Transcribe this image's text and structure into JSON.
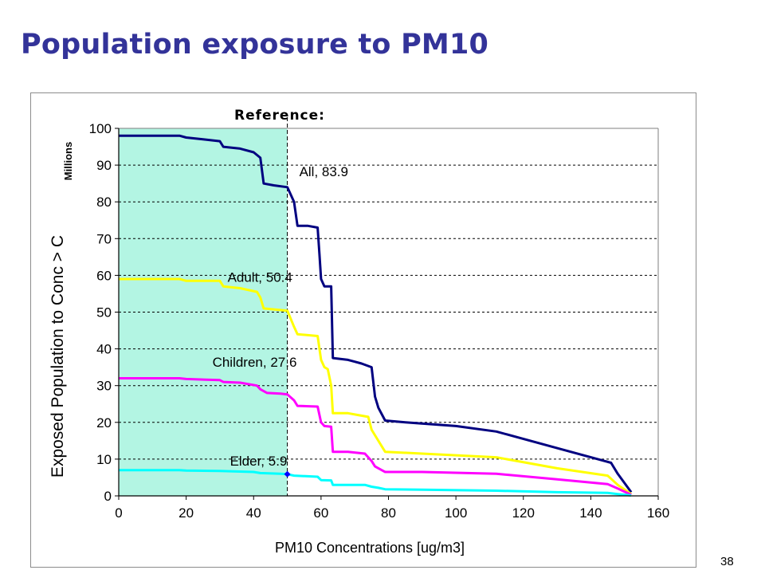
{
  "slide": {
    "title": "Population exposure to PM10",
    "page_number": "38"
  },
  "colors": {
    "title": "#333399",
    "reference_band": "#b3f5e3",
    "All": "#000080",
    "Adult": "#ffff00",
    "Children": "#ff00ff",
    "Elder": "#00ffff",
    "marker": "#0000ff"
  },
  "chart_data": {
    "type": "line",
    "title": "Reference:",
    "xlabel": "PM10 Concentrations [ug/m3]",
    "ylabel": "Exposed Population to Conc > C",
    "yunits": "Millions",
    "xlim": [
      0,
      160
    ],
    "ylim": [
      0,
      100
    ],
    "xticks": [
      0,
      20,
      40,
      60,
      80,
      100,
      120,
      140,
      160
    ],
    "yticks": [
      0,
      10,
      20,
      30,
      40,
      50,
      60,
      70,
      80,
      90,
      100
    ],
    "grid": "horizontal dashed",
    "reference": {
      "x": 50,
      "shaded_from": 0
    },
    "series": [
      {
        "name": "All",
        "color_key": "All",
        "points": [
          [
            0,
            98
          ],
          [
            18,
            98
          ],
          [
            20,
            97.5
          ],
          [
            25,
            97
          ],
          [
            30,
            96.5
          ],
          [
            31,
            95
          ],
          [
            36,
            94.5
          ],
          [
            40,
            93.5
          ],
          [
            42,
            92
          ],
          [
            43,
            85
          ],
          [
            46,
            84.5
          ],
          [
            50,
            84
          ],
          [
            52,
            80
          ],
          [
            53,
            73.5
          ],
          [
            56,
            73.5
          ],
          [
            59,
            73
          ],
          [
            59.5,
            66
          ],
          [
            60,
            59
          ],
          [
            61,
            57
          ],
          [
            63,
            57
          ],
          [
            63.5,
            37.5
          ],
          [
            68,
            37
          ],
          [
            70,
            36.5
          ],
          [
            72,
            36
          ],
          [
            75,
            35
          ],
          [
            76,
            27
          ],
          [
            77,
            24
          ],
          [
            79,
            20.5
          ],
          [
            85,
            20
          ],
          [
            100,
            19
          ],
          [
            112,
            17.5
          ],
          [
            130,
            13
          ],
          [
            146,
            9
          ],
          [
            148,
            6
          ],
          [
            152,
            1
          ]
        ]
      },
      {
        "name": "Adult",
        "color_key": "Adult",
        "points": [
          [
            0,
            59
          ],
          [
            18,
            59
          ],
          [
            20,
            58.5
          ],
          [
            30,
            58.5
          ],
          [
            31,
            57
          ],
          [
            36,
            56.5
          ],
          [
            41,
            55.5
          ],
          [
            42,
            54
          ],
          [
            43,
            51
          ],
          [
            50,
            50.4
          ],
          [
            52,
            46
          ],
          [
            53,
            44
          ],
          [
            59,
            43.5
          ],
          [
            60,
            37
          ],
          [
            61,
            35
          ],
          [
            62,
            34.5
          ],
          [
            63,
            30
          ],
          [
            63.5,
            22.5
          ],
          [
            68,
            22.5
          ],
          [
            71,
            22
          ],
          [
            74,
            21.5
          ],
          [
            75,
            18
          ],
          [
            77,
            15
          ],
          [
            79,
            12
          ],
          [
            90,
            11.5
          ],
          [
            112,
            10.5
          ],
          [
            130,
            7.5
          ],
          [
            145,
            5.5
          ],
          [
            148,
            3
          ],
          [
            152,
            0.5
          ]
        ]
      },
      {
        "name": "Children",
        "color_key": "Children",
        "points": [
          [
            0,
            32
          ],
          [
            18,
            32
          ],
          [
            20,
            31.8
          ],
          [
            30,
            31.5
          ],
          [
            31,
            31
          ],
          [
            36,
            30.8
          ],
          [
            41,
            30
          ],
          [
            42,
            29
          ],
          [
            44,
            28
          ],
          [
            48,
            27.8
          ],
          [
            50,
            27.6
          ],
          [
            52,
            26
          ],
          [
            53,
            24.5
          ],
          [
            59,
            24.3
          ],
          [
            60,
            20
          ],
          [
            61,
            19
          ],
          [
            63,
            18.8
          ],
          [
            63.5,
            12
          ],
          [
            68,
            12
          ],
          [
            73,
            11.5
          ],
          [
            75,
            9.5
          ],
          [
            76,
            8
          ],
          [
            78,
            7
          ],
          [
            79,
            6.5
          ],
          [
            90,
            6.5
          ],
          [
            112,
            6
          ],
          [
            130,
            4.5
          ],
          [
            145,
            3.2
          ],
          [
            148,
            2
          ],
          [
            152,
            0.3
          ]
        ]
      },
      {
        "name": "Elder",
        "color_key": "Elder",
        "points": [
          [
            0,
            7
          ],
          [
            18,
            7
          ],
          [
            20,
            6.9
          ],
          [
            30,
            6.8
          ],
          [
            40,
            6.5
          ],
          [
            42,
            6.2
          ],
          [
            48,
            6
          ],
          [
            50,
            5.9
          ],
          [
            52,
            5.5
          ],
          [
            59,
            5.2
          ],
          [
            60,
            4.3
          ],
          [
            63,
            4.2
          ],
          [
            63.5,
            3
          ],
          [
            68,
            3
          ],
          [
            73,
            3
          ],
          [
            75,
            2.5
          ],
          [
            77,
            2.2
          ],
          [
            79,
            1.8
          ],
          [
            90,
            1.7
          ],
          [
            112,
            1.4
          ],
          [
            130,
            1
          ],
          [
            145,
            0.8
          ],
          [
            148,
            0.5
          ],
          [
            152,
            0.1
          ]
        ]
      }
    ],
    "annotations": [
      {
        "text": "All, 83.9",
        "x": 50,
        "y": 83.9
      },
      {
        "text": "Adult, 50.4",
        "x": 50,
        "y": 50.4
      },
      {
        "text": "Children, 27.6",
        "x": 50,
        "y": 27.6
      },
      {
        "text": "Elder, 5.9",
        "x": 50,
        "y": 5.9
      }
    ],
    "marker": {
      "x": 50,
      "y": 5.9
    }
  }
}
